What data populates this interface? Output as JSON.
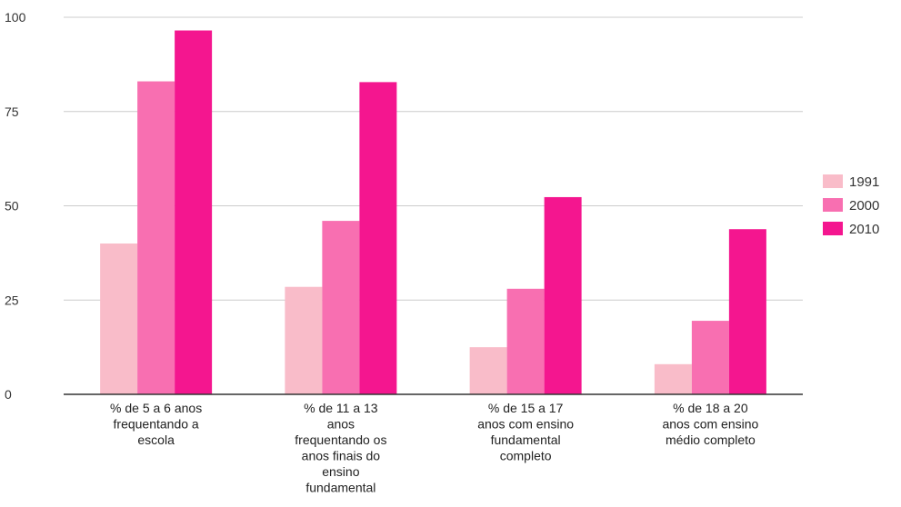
{
  "chart_data": {
    "type": "bar",
    "title": "",
    "xlabel": "",
    "ylabel": "",
    "ylim": [
      0,
      100
    ],
    "yticks": [
      0,
      25,
      50,
      75,
      100
    ],
    "grid": true,
    "legend_position": "right",
    "categories": [
      [
        "% de 5 a 6 anos",
        "frequentando a",
        "escola"
      ],
      [
        "% de 11 a 13",
        "anos",
        "frequentando os",
        "anos finais do",
        "ensino",
        "fundamental"
      ],
      [
        "% de 15 a 17",
        "anos com ensino",
        "fundamental",
        "completo"
      ],
      [
        "% de 18 a 20",
        "anos com ensino",
        "médio completo"
      ]
    ],
    "series": [
      {
        "name": "1991",
        "color": "#f9bcc9",
        "values": [
          40,
          28.5,
          12.5,
          8
        ]
      },
      {
        "name": "2000",
        "color": "#f86fb1",
        "values": [
          83,
          46,
          28,
          19.5
        ]
      },
      {
        "name": "2010",
        "color": "#f4168f",
        "values": [
          96.5,
          82.8,
          52.3,
          43.8
        ]
      }
    ]
  }
}
